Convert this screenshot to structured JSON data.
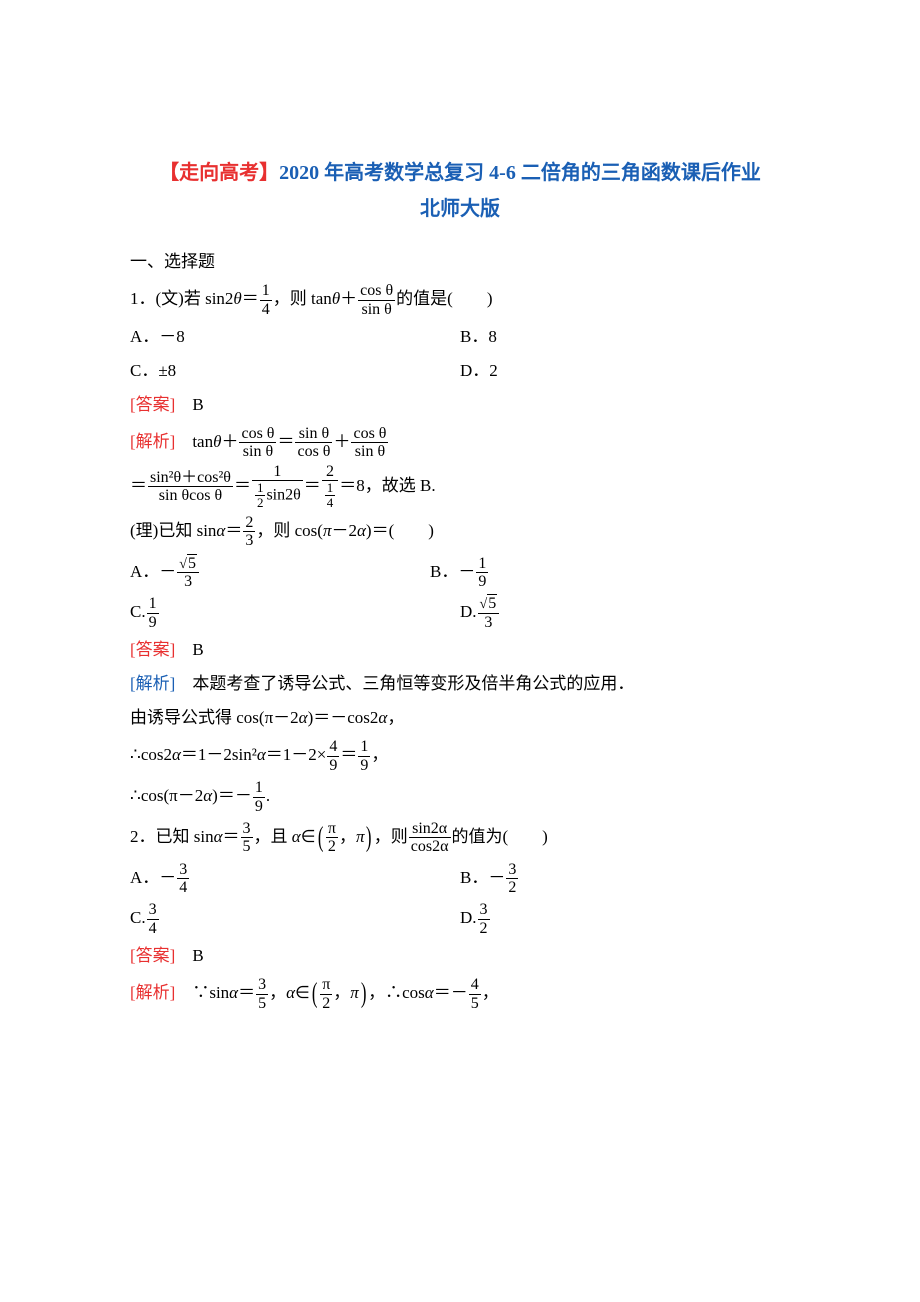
{
  "title": {
    "prefix": "【走向高考】",
    "year": "2020",
    "mid": " 年高考数学总复习 4-6 二倍角的三角函数课后作业",
    "publisher": "北师大版",
    "prefix_color": "#e83030",
    "body_color": "#1a5fb4"
  },
  "section1": "一、选择题",
  "q1": {
    "wen_prefix": "1．(文)若 sin2",
    "wen_theta": "θ",
    "wen_eq": "＝",
    "frac_1_4_num": "1",
    "frac_1_4_den": "4",
    "wen_mid": "，则 tan",
    "wen_plus": "＋",
    "cos_theta": "cos θ",
    "sin_theta": "sin θ",
    "wen_tail": "的值是(　　)",
    "optA": "A．－8",
    "optB": "B．8",
    "optC": "C．±8",
    "optD": "D．2",
    "ans_label": "[答案]",
    "ans": "　B",
    "ana_label": "[解析]",
    "ana_1": "　tan",
    "ana_1_theta": "θ",
    "ana_1_plus": "＋",
    "ana_1_eq": "＝",
    "sin_over_cos_num": "sin θ",
    "sin_over_cos_den": "cos θ",
    "ana_2_eq1": "＝",
    "sin2_cos2": "sin²θ＋cos²θ",
    "sin_cos": "sin θcos θ",
    "ana_2_eq2": "＝",
    "num_1": "1",
    "half_sin2_num": "1",
    "half_sin2_den": "2",
    "sin2theta": "sin2θ",
    "ana_2_eq3": "＝",
    "num_2": "2",
    "den_1_4_num": "1",
    "den_1_4_den": "4",
    "ana_2_tail": "＝8，故选 B.",
    "li_prefix": "(理)已知 sin",
    "li_alpha": "α",
    "li_eq": "＝",
    "frac_2_3_num": "2",
    "frac_2_3_den": "3",
    "li_mid": "，则 cos(",
    "li_pi": "π",
    "li_minus2a": "－2",
    "li_tail": ")＝(　　)",
    "li_optA_pre": "A．－",
    "sqrt5": "5",
    "den3": "3",
    "li_optB_pre": "B．－",
    "frac_1_9_num": "1",
    "frac_1_9_den": "9",
    "li_optC": "C.",
    "li_optD": "D.",
    "li_ans_label": "[答案]",
    "li_ans": "　B",
    "li_ana_label": "[解析]",
    "li_ana_text": "　本题考查了诱导公式、三角恒等变形及倍半角公式的应用．",
    "li_step1": "由诱导公式得 cos(π－2",
    "li_step1_tail": ")＝－cos2",
    "li_step1_end": "，",
    "li_step2_pre": "∴cos2",
    "li_step2_mid": "＝1－2sin²",
    "li_step2_eq": "＝1－2×",
    "frac_4_9_num": "4",
    "frac_4_9_den": "9",
    "li_step2_eq2": "＝",
    "li_step2_end": "，",
    "li_step3_pre": "∴cos(π－2",
    "li_step3_mid": ")＝－",
    "li_step3_end": "."
  },
  "q2": {
    "prefix": "2．已知 sin",
    "alpha": "α",
    "eq": "＝",
    "frac_3_5_num": "3",
    "frac_3_5_den": "5",
    "mid1": "，且 ",
    "in": "∈",
    "pi_half_num": "π",
    "pi_half_den": "2",
    "comma": "，",
    "pi": "π",
    "mid2": "，则",
    "sin2a": "sin2α",
    "cos2a": "cos2α",
    "tail": "的值为(　　)",
    "optA_pre": "A．－",
    "frac_3_4_num": "3",
    "frac_3_4_den": "4",
    "optB_pre": "B．－",
    "frac_3_2_num": "3",
    "frac_3_2_den": "2",
    "optC": "C.",
    "optD": "D.",
    "ans_label": "[答案]",
    "ans": "　B",
    "ana_label": "[解析]",
    "ana_pre": "　∵sin",
    "ana_eq": "＝",
    "ana_mid": "，",
    "ana_in": "∈",
    "ana_cos_pre": "，∴cos",
    "ana_cos_eq": "＝－",
    "frac_4_5_num": "4",
    "frac_4_5_den": "5",
    "ana_end": "，"
  },
  "colors": {
    "text": "#000000",
    "red": "#e83030",
    "blue": "#1a5fb4",
    "background": "#ffffff"
  }
}
